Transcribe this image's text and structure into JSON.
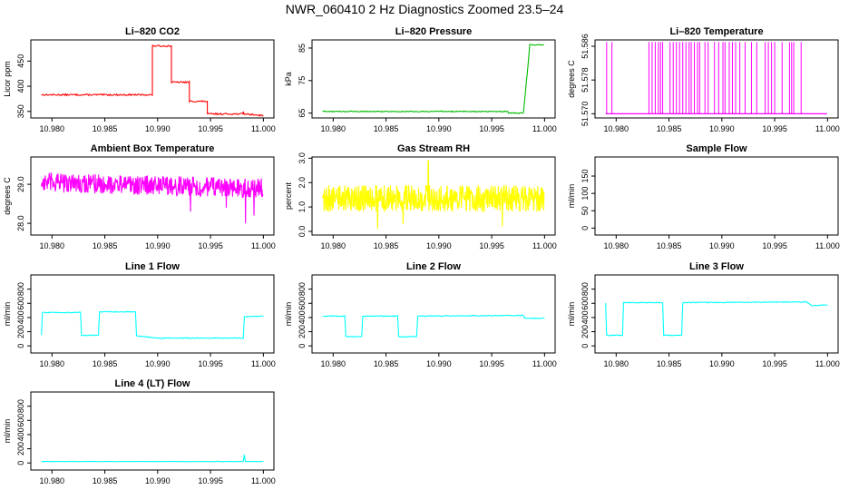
{
  "page_title": "NWR_060410  2 Hz Diagnostics Zoomed 23.5–24",
  "colors": {
    "red": "#ff0000",
    "green": "#00bb00",
    "magenta": "#ff00ff",
    "yellow": "#ffff00",
    "cyan": "#00ffff"
  },
  "chart_data": [
    {
      "id": "co2",
      "type": "line",
      "title": "Li–820 CO2",
      "ylabel": "Licor ppm",
      "color": "#ff0000",
      "xlim": [
        10.978,
        11.001
      ],
      "ylim": [
        337,
        492
      ],
      "yticks": [
        350,
        400,
        450
      ],
      "ytick_labels": [
        "350",
        "400",
        "450"
      ],
      "xticks": [
        10.98,
        10.985,
        10.99,
        10.995,
        11.0
      ],
      "xtick_labels": [
        "10.980",
        "10.985",
        "10.990",
        "10.995",
        "11.000"
      ],
      "segments": [
        [
          10.979,
          383
        ],
        [
          10.9895,
          383
        ],
        [
          10.9895,
          480
        ],
        [
          10.9913,
          480
        ],
        [
          10.9913,
          408
        ],
        [
          10.993,
          408
        ],
        [
          10.993,
          370
        ],
        [
          10.9947,
          370
        ],
        [
          10.9947,
          345
        ],
        [
          10.9981,
          345
        ],
        [
          10.9981,
          350
        ],
        [
          10.9982,
          345
        ],
        [
          11.0,
          342
        ]
      ],
      "noise": 1.5
    },
    {
      "id": "pressure",
      "type": "line",
      "title": "Li–820 Pressure",
      "ylabel": "kPa",
      "color": "#00bb00",
      "xlim": [
        10.978,
        11.001
      ],
      "ylim": [
        63.5,
        87.5
      ],
      "yticks": [
        65,
        75,
        85
      ],
      "ytick_labels": [
        "65",
        "75",
        "85"
      ],
      "xticks": [
        10.98,
        10.985,
        10.99,
        10.995,
        11.0
      ],
      "xtick_labels": [
        "10.980",
        "10.985",
        "10.990",
        "10.995",
        "11.000"
      ],
      "segments": [
        [
          10.979,
          65.5
        ],
        [
          10.9965,
          65.5
        ],
        [
          10.9966,
          65.0
        ],
        [
          10.998,
          65.0
        ],
        [
          10.9985,
          82.0
        ],
        [
          10.9986,
          86.0
        ],
        [
          10.99995,
          86.0
        ]
      ],
      "noise": 0.15
    },
    {
      "id": "temperature",
      "type": "spikes",
      "title": "Li–820 Temperature",
      "ylabel": "degrees C",
      "color": "#ff00ff",
      "xlim": [
        10.978,
        11.001
      ],
      "ylim": [
        51.569,
        51.5875
      ],
      "yticks": [
        51.57,
        51.578,
        51.586
      ],
      "ytick_labels": [
        "51.570",
        "51.578",
        "51.586"
      ],
      "xticks": [
        10.98,
        10.985,
        10.99,
        10.995,
        11.0
      ],
      "xtick_labels": [
        "10.980",
        "10.985",
        "10.990",
        "10.995",
        "11.000"
      ],
      "baseline": 51.57,
      "spike_top": 51.587,
      "spikes": [
        10.9791,
        10.9796,
        10.9831,
        10.9834,
        10.9837,
        10.984,
        10.9842,
        10.9844,
        10.9851,
        10.9854,
        10.9857,
        10.986,
        10.9863,
        10.9866,
        10.9869,
        10.9871,
        10.9874,
        10.9877,
        10.9879,
        10.9884,
        10.9887,
        10.9893,
        10.9897,
        10.9901,
        10.9903,
        10.9907,
        10.991,
        10.9913,
        10.9917,
        10.9922,
        10.9928,
        10.9933,
        10.9941,
        10.9944,
        10.9947,
        10.995,
        10.9957,
        10.9964,
        10.9966,
        10.9968,
        10.9975
      ]
    },
    {
      "id": "box_temp",
      "type": "noise",
      "title": "Ambient Box Temperature",
      "ylabel": "degrees C",
      "color": "#ff00ff",
      "xlim": [
        10.978,
        11.001
      ],
      "ylim": [
        27.7,
        29.7
      ],
      "yticks": [
        28.0,
        29.0
      ],
      "ytick_labels": [
        "28.0",
        "29.0"
      ],
      "xticks": [
        10.98,
        10.985,
        10.99,
        10.995,
        11.0
      ],
      "xtick_labels": [
        "10.980",
        "10.985",
        "10.990",
        "10.995",
        "11.000"
      ],
      "start": [
        10.979,
        29.05
      ],
      "end": [
        10.99995,
        28.9
      ],
      "amplitude": 0.25,
      "dips": [
        [
          10.9931,
          28.3
        ],
        [
          10.9965,
          28.4
        ],
        [
          10.9983,
          28.0
        ],
        [
          10.9991,
          28.2
        ]
      ]
    },
    {
      "id": "rh",
      "type": "noise",
      "title": "Gas Stream RH",
      "ylabel": "percent",
      "color": "#ffff00",
      "xlim": [
        10.978,
        11.001
      ],
      "ylim": [
        -0.15,
        3.05
      ],
      "yticks": [
        0.0,
        1.0,
        2.0,
        3.0
      ],
      "ytick_labels": [
        "0.0",
        "1.0",
        "2.0",
        "3.0"
      ],
      "xticks": [
        10.98,
        10.985,
        10.99,
        10.995,
        11.0
      ],
      "xtick_labels": [
        "10.980",
        "10.985",
        "10.990",
        "10.995",
        "11.000"
      ],
      "start": [
        10.979,
        1.35
      ],
      "end": [
        10.99995,
        1.35
      ],
      "amplitude": 0.55,
      "dips": [
        [
          10.9842,
          0.1
        ],
        [
          10.9866,
          0.3
        ],
        [
          10.989,
          2.9
        ],
        [
          10.996,
          0.2
        ]
      ]
    },
    {
      "id": "sample_flow",
      "type": "empty",
      "title": "Sample Flow",
      "ylabel": "ml/min",
      "color": "#00ffff",
      "xlim": [
        10.978,
        11.001
      ],
      "ylim": [
        -20,
        205
      ],
      "yticks": [
        0,
        50,
        100,
        150
      ],
      "ytick_labels": [
        "0",
        "50",
        "100",
        "150"
      ],
      "xticks": [
        10.98,
        10.985,
        10.99,
        10.995,
        11.0
      ],
      "xtick_labels": [
        "10.980",
        "10.985",
        "10.990",
        "10.995",
        "11.000"
      ]
    },
    {
      "id": "line1",
      "type": "line",
      "title": "Line 1 Flow",
      "ylabel": "ml/min",
      "color": "#00ffff",
      "xlim": [
        10.978,
        11.001
      ],
      "ylim": [
        -100,
        1000
      ],
      "yticks": [
        0,
        200,
        400,
        600,
        800
      ],
      "ytick_labels": [
        "0",
        "200",
        "400",
        "600",
        "800"
      ],
      "xticks": [
        10.98,
        10.985,
        10.99,
        10.995,
        11.0
      ],
      "xtick_labels": [
        "10.980",
        "10.985",
        "10.990",
        "10.995",
        "11.000"
      ],
      "segments": [
        [
          10.979,
          150
        ],
        [
          10.9791,
          470
        ],
        [
          10.9827,
          470
        ],
        [
          10.9828,
          150
        ],
        [
          10.9844,
          150
        ],
        [
          10.9845,
          480
        ],
        [
          10.9879,
          480
        ],
        [
          10.988,
          140
        ],
        [
          10.99,
          110
        ],
        [
          10.9981,
          110
        ],
        [
          10.9982,
          410
        ],
        [
          11.0,
          420
        ]
      ],
      "noise": 6
    },
    {
      "id": "line2",
      "type": "line",
      "title": "Line 2 Flow",
      "ylabel": "ml/min",
      "color": "#00ffff",
      "xlim": [
        10.978,
        11.001
      ],
      "ylim": [
        -100,
        1000
      ],
      "yticks": [
        0,
        200,
        400,
        600,
        800
      ],
      "ytick_labels": [
        "0",
        "200",
        "400",
        "600",
        "800"
      ],
      "xticks": [
        10.98,
        10.985,
        10.99,
        10.995,
        11.0
      ],
      "xtick_labels": [
        "10.980",
        "10.985",
        "10.990",
        "10.995",
        "11.000"
      ],
      "segments": [
        [
          10.979,
          420
        ],
        [
          10.9811,
          420
        ],
        [
          10.9812,
          130
        ],
        [
          10.9827,
          130
        ],
        [
          10.9828,
          420
        ],
        [
          10.9861,
          420
        ],
        [
          10.9862,
          130
        ],
        [
          10.9879,
          130
        ],
        [
          10.988,
          420
        ],
        [
          10.998,
          430
        ],
        [
          10.9981,
          390
        ],
        [
          11.0,
          390
        ]
      ],
      "noise": 6
    },
    {
      "id": "line3",
      "type": "line",
      "title": "Line 3 Flow",
      "ylabel": "ml/min",
      "color": "#00ffff",
      "xlim": [
        10.978,
        11.001
      ],
      "ylim": [
        -100,
        1000
      ],
      "yticks": [
        0,
        200,
        400,
        600,
        800
      ],
      "ytick_labels": [
        "0",
        "200",
        "400",
        "600",
        "800"
      ],
      "xticks": [
        10.98,
        10.985,
        10.99,
        10.995,
        11.0
      ],
      "xtick_labels": [
        "10.980",
        "10.985",
        "10.990",
        "10.995",
        "11.000"
      ],
      "segments": [
        [
          10.979,
          600
        ],
        [
          10.9791,
          150
        ],
        [
          10.9806,
          150
        ],
        [
          10.9807,
          610
        ],
        [
          10.9844,
          610
        ],
        [
          10.9845,
          150
        ],
        [
          10.9862,
          150
        ],
        [
          10.9863,
          610
        ],
        [
          10.998,
          620
        ],
        [
          10.9985,
          570
        ],
        [
          11.0,
          575
        ]
      ],
      "noise": 6
    },
    {
      "id": "line4",
      "type": "line",
      "title": "Line 4 (LT) Flow",
      "ylabel": "ml/min",
      "color": "#00ffff",
      "xlim": [
        10.978,
        11.001
      ],
      "ylim": [
        -100,
        1000
      ],
      "yticks": [
        0,
        200,
        400,
        600,
        800
      ],
      "ytick_labels": [
        "0",
        "200",
        "400",
        "600",
        "800"
      ],
      "xticks": [
        10.98,
        10.985,
        10.99,
        10.995,
        11.0
      ],
      "xtick_labels": [
        "10.980",
        "10.985",
        "10.990",
        "10.995",
        "11.000"
      ],
      "segments": [
        [
          10.979,
          20
        ],
        [
          10.9981,
          20
        ],
        [
          10.9982,
          120
        ],
        [
          10.9983,
          20
        ],
        [
          11.0,
          20
        ]
      ],
      "noise": 3
    }
  ]
}
